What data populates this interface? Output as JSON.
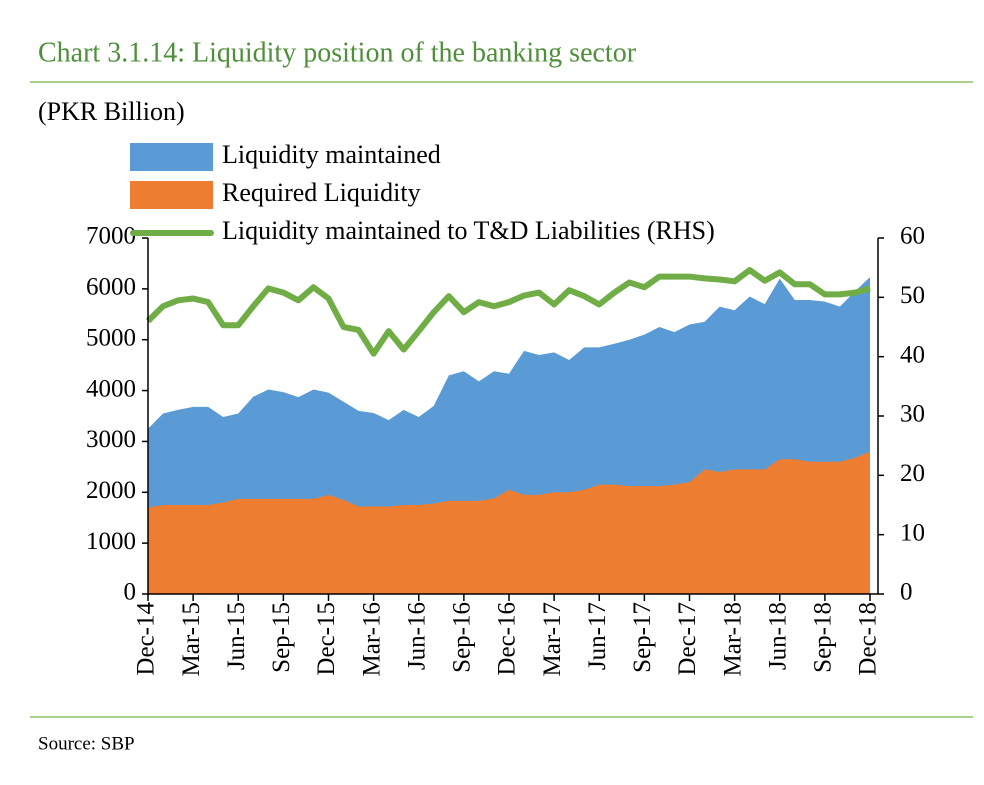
{
  "chart_data": {
    "type": "area",
    "title": "Chart 3.1.14: Liquidity position of the banking sector",
    "y_label": "(PKR Billion)",
    "source": "Source: SBP",
    "categories": [
      "Dec-14",
      null,
      null,
      "Mar-15",
      null,
      null,
      "Jun-15",
      null,
      null,
      "Sep-15",
      null,
      null,
      "Dec-15",
      null,
      null,
      "Mar-16",
      null,
      null,
      "Jun-16",
      null,
      null,
      "Sep-16",
      null,
      null,
      "Dec-16",
      null,
      null,
      "Mar-17",
      null,
      null,
      "Jun-17",
      null,
      null,
      "Sep-17",
      null,
      null,
      "Dec-17",
      null,
      null,
      "Mar-18",
      null,
      null,
      "Jun-18",
      null,
      null,
      "Sep-18",
      null,
      null,
      "Dec-18"
    ],
    "series": [
      {
        "name": "Liquidity maintained",
        "color": "#5b9bd5",
        "type": "area",
        "values": [
          3250,
          3550,
          3620,
          3680,
          3680,
          3480,
          3550,
          3880,
          4020,
          3970,
          3870,
          4020,
          3960,
          3780,
          3600,
          3560,
          3420,
          3620,
          3480,
          3700,
          4300,
          4380,
          4180,
          4380,
          4330,
          4780,
          4700,
          4750,
          4600,
          4850,
          4850,
          4920,
          5000,
          5100,
          5250,
          5150,
          5300,
          5350,
          5650,
          5580,
          5850,
          5700,
          6200,
          5780,
          5780,
          5750,
          5650,
          5950,
          6230
        ]
      },
      {
        "name": "Required Liquidity",
        "color": "#ed7d31",
        "type": "area",
        "values": [
          1700,
          1750,
          1750,
          1750,
          1750,
          1800,
          1870,
          1870,
          1870,
          1870,
          1870,
          1870,
          1950,
          1850,
          1720,
          1720,
          1720,
          1750,
          1750,
          1780,
          1830,
          1830,
          1830,
          1880,
          2050,
          1950,
          1950,
          2000,
          2000,
          2050,
          2150,
          2150,
          2120,
          2120,
          2120,
          2150,
          2200,
          2450,
          2400,
          2450,
          2450,
          2450,
          2650,
          2650,
          2600,
          2600,
          2600,
          2680,
          2800
        ]
      },
      {
        "name": "Liquidity maintained to T&D Liabilities (RHS)",
        "color": "#70ad47",
        "type": "line",
        "axis": "y2",
        "values": [
          46,
          48.5,
          49.5,
          49.8,
          49.2,
          45.3,
          45.3,
          48.5,
          51.5,
          50.8,
          49.5,
          51.7,
          49.8,
          45,
          44.5,
          40.5,
          44.3,
          41.2,
          44.3,
          47.5,
          50.2,
          47.5,
          49.2,
          48.5,
          49.2,
          50.3,
          50.8,
          48.8,
          51.2,
          50.2,
          48.8,
          50.8,
          52.5,
          51.7,
          53.5,
          53.5,
          53.5,
          53.2,
          53,
          52.7,
          54.6,
          52.8,
          54.2,
          52.2,
          52.2,
          50.5,
          50.5,
          50.8,
          51.5
        ]
      }
    ],
    "ylim": [
      0,
      7000
    ],
    "yticks": [
      0,
      1000,
      2000,
      3000,
      4000,
      5000,
      6000,
      7000
    ],
    "y2lim": [
      0,
      60
    ],
    "y2ticks": [
      0,
      10,
      20,
      30,
      40,
      50,
      60
    ]
  }
}
